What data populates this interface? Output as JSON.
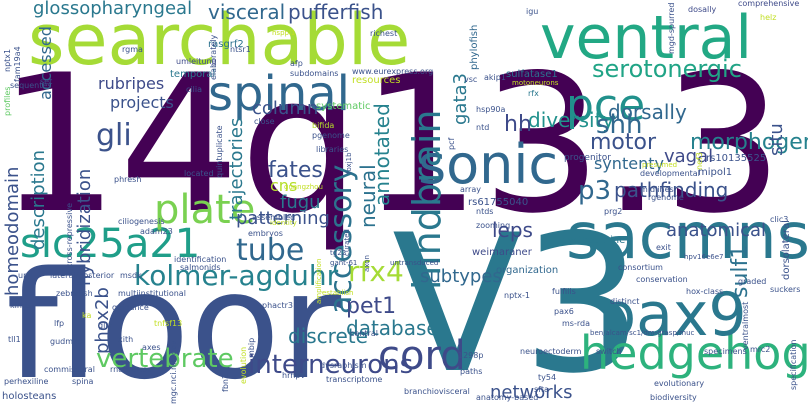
{
  "words": [
    {
      "text": "14q13.3",
      "color": "#440154"
    },
    {
      "text": "V3",
      "color": "#2a788e"
    },
    {
      "text": "floor",
      "color": "#3b528b"
    },
    {
      "text": "searchable",
      "color": "#a5db36"
    },
    {
      "text": "ventral",
      "color": "#22a884"
    },
    {
      "text": "sacmns",
      "color": "#2a788e"
    },
    {
      "text": "hedgehog",
      "color": "#2db27d"
    },
    {
      "text": "pax9",
      "color": "#2a788e"
    },
    {
      "text": "sonic",
      "color": "#31688e"
    },
    {
      "text": "spinal",
      "color": "#31688e"
    },
    {
      "text": "slc25a21",
      "color": "#1f9e89"
    },
    {
      "text": "cord",
      "color": "#3e4a89"
    },
    {
      "text": "hindbrain",
      "color": "#2a788e"
    },
    {
      "text": "pce",
      "color": "#21918c"
    },
    {
      "text": "serotonergic",
      "color": "#20a486"
    },
    {
      "text": "accessory",
      "color": "#2c728e"
    },
    {
      "text": "kolmer-agduhr",
      "color": "#26828e"
    },
    {
      "text": "vertebrate",
      "color": "#5ec962"
    },
    {
      "text": "interneurons",
      "color": "#3e4a89"
    },
    {
      "text": "glossopharyngeal",
      "color": "#2a788e"
    },
    {
      "text": "visceral",
      "color": "#31688e"
    },
    {
      "text": "pufferfish",
      "color": "#3b528b"
    },
    {
      "text": "gata3",
      "color": "#2a788e"
    },
    {
      "text": "diversity",
      "color": "#21918c"
    },
    {
      "text": "shh",
      "color": "#31688e"
    },
    {
      "text": "hh",
      "color": "#3e4a89"
    },
    {
      "text": "dorsally",
      "color": "#31688e"
    },
    {
      "text": "motor",
      "color": "#3b528b"
    },
    {
      "text": "morphogen",
      "color": "#26828e"
    },
    {
      "text": "gli",
      "color": "#3b528b"
    },
    {
      "text": "projects",
      "color": "#3b528b"
    },
    {
      "text": "rubripes",
      "color": "#3e4a89"
    },
    {
      "text": "column",
      "color": "#3b528b"
    },
    {
      "text": "plate",
      "color": "#7ad151"
    },
    {
      "text": "tube",
      "color": "#31688e"
    },
    {
      "text": "homeodomain",
      "color": "#3b528b"
    },
    {
      "text": "description",
      "color": "#2a788e"
    },
    {
      "text": "hybridization",
      "color": "#3b528b"
    },
    {
      "text": "trajectories",
      "color": "#2a788e"
    },
    {
      "text": "fates",
      "color": "#3b528b"
    },
    {
      "text": "fugu",
      "color": "#2a788e"
    },
    {
      "text": "patterning",
      "color": "#3b528b"
    },
    {
      "text": "p3",
      "color": "#31688e"
    },
    {
      "text": "pathfinding",
      "color": "#3b528b"
    },
    {
      "text": "neural",
      "color": "#2c728e"
    },
    {
      "text": "annotated",
      "color": "#26828e"
    },
    {
      "text": "rfx4",
      "color": "#a5db36"
    },
    {
      "text": "pet1",
      "color": "#3e4a89"
    },
    {
      "text": "discrete",
      "color": "#2a788e"
    },
    {
      "text": "database",
      "color": "#2a788e"
    },
    {
      "text": "sulf1",
      "color": "#2c728e"
    },
    {
      "text": "anatomical",
      "color": "#3b528b"
    },
    {
      "text": "leps",
      "color": "#3e4a89"
    },
    {
      "text": "subtypes",
      "color": "#31688e"
    },
    {
      "text": "networks",
      "color": "#3b528b"
    },
    {
      "text": "phox2b",
      "color": "#3b528b"
    },
    {
      "text": "vagal",
      "color": "#3e4a89"
    },
    {
      "text": "syntenty",
      "color": "#31688e"
    },
    {
      "text": "situ",
      "color": "#3b528b"
    },
    {
      "text": "accessed",
      "color": "#31688e"
    },
    {
      "text": "cns",
      "color": "#b5de2b"
    },
    {
      "text": "rs10135525",
      "color": "#3b528b"
    },
    {
      "text": "mipol1",
      "color": "#3b528b"
    },
    {
      "text": "progenitor",
      "color": "#3b528b"
    },
    {
      "text": "cyclopamine",
      "color": "#2a788e"
    },
    {
      "text": "rs61755040",
      "color": "#3b528b"
    },
    {
      "text": "weimaraner",
      "color": "#3e4a89"
    },
    {
      "text": "organization",
      "color": "#31688e"
    },
    {
      "text": "www.eurexpress.org",
      "color": "#3b528b"
    },
    {
      "text": "rasgrf2",
      "color": "#2c728e"
    },
    {
      "text": "sulfatase1",
      "color": "#2c728e"
    },
    {
      "text": "resources",
      "color": "#c2df23"
    },
    {
      "text": "systematic",
      "color": "#5ec962"
    },
    {
      "text": "temporal",
      "color": "#2a788e"
    },
    {
      "text": "elaborately",
      "color": "#3b528b"
    },
    {
      "text": "richest",
      "color": "#3b528b"
    },
    {
      "text": "phylofish",
      "color": "#31688e"
    },
    {
      "text": "dosally",
      "color": "#3e4a89"
    },
    {
      "text": "comprehensive",
      "color": "#3e4a89"
    },
    {
      "text": "helz",
      "color": "#c2df23"
    },
    {
      "text": "mgd-spurred",
      "color": "#3b528b"
    },
    {
      "text": "igu",
      "color": "#3b528b"
    },
    {
      "text": "nptx1",
      "color": "#3b528b"
    },
    {
      "text": "fam19a4",
      "color": "#3b528b"
    },
    {
      "text": "profiles",
      "color": "#5ec962"
    },
    {
      "text": "sequentes",
      "color": "#3b528b"
    },
    {
      "text": "set",
      "color": "#3b528b"
    },
    {
      "text": "rgma",
      "color": "#3b528b"
    },
    {
      "text": "ntsr1",
      "color": "#3b528b"
    },
    {
      "text": "afp",
      "color": "#3b528b"
    },
    {
      "text": "subdomains",
      "color": "#3b528b"
    },
    {
      "text": "umleitung",
      "color": "#3e4a89"
    },
    {
      "text": "vsc",
      "color": "#3b528b"
    },
    {
      "text": "akip1",
      "color": "#3b528b"
    },
    {
      "text": "motoneurons",
      "color": "#c2df23"
    },
    {
      "text": "rfx",
      "color": "#2a788e"
    },
    {
      "text": "cilia",
      "color": "#3b528b"
    },
    {
      "text": "close",
      "color": "#3b528b"
    },
    {
      "text": "bifida",
      "color": "#b5de2b"
    },
    {
      "text": "pgenome",
      "color": "#3b528b"
    },
    {
      "text": "libraries",
      "color": "#3b528b"
    },
    {
      "text": "hsp90a",
      "color": "#3b528b"
    },
    {
      "text": "ntd",
      "color": "#3b528b"
    },
    {
      "text": "pcf",
      "color": "#3b528b"
    },
    {
      "text": "developmental",
      "color": "#3b528b"
    },
    {
      "text": "nef3",
      "color": "#c2df23"
    },
    {
      "text": "presumed",
      "color": "#c2df23"
    },
    {
      "text": "located",
      "color": "#3b528b"
    },
    {
      "text": "quintuplicate",
      "color": "#3b528b"
    },
    {
      "text": "guangzhou",
      "color": "#c2df23"
    },
    {
      "text": "foxj1b",
      "color": "#3b528b"
    },
    {
      "text": "array",
      "color": "#3b528b"
    },
    {
      "text": "midlines",
      "color": "#3b528b"
    },
    {
      "text": "prg2",
      "color": "#3b528b"
    },
    {
      "text": "rgenome",
      "color": "#3b528b"
    },
    {
      "text": "ntds",
      "color": "#3b528b"
    },
    {
      "text": "zooming",
      "color": "#3b528b"
    },
    {
      "text": "phresh",
      "color": "#3b528b"
    },
    {
      "text": "cross-repressive",
      "color": "#3b528b"
    },
    {
      "text": "ciliogenesis",
      "color": "#3b528b"
    },
    {
      "text": "adam23",
      "color": "#3b528b"
    },
    {
      "text": "assembled",
      "color": "#3b528b"
    },
    {
      "text": "embryos",
      "color": "#3b528b"
    },
    {
      "text": "identity",
      "color": "#c2df23"
    },
    {
      "text": "curated",
      "color": "#3b528b"
    },
    {
      "text": "exit",
      "color": "#3b528b"
    },
    {
      "text": "clic3",
      "color": "#3b528b"
    },
    {
      "text": "dorsolateral",
      "color": "#3b528b"
    },
    {
      "text": "hpv16e6e7",
      "color": "#3b528b"
    },
    {
      "text": "lateral/posterior",
      "color": "#3b528b"
    },
    {
      "text": "uml",
      "color": "#3b528b"
    },
    {
      "text": "msdk",
      "color": "#3b528b"
    },
    {
      "text": "identification",
      "color": "#3b528b"
    },
    {
      "text": "salmonids",
      "color": "#3b528b"
    },
    {
      "text": "zebrafish",
      "color": "#3b528b"
    },
    {
      "text": "multiinstitutional",
      "color": "#3b528b"
    },
    {
      "text": "kinds",
      "color": "#3b528b"
    },
    {
      "text": "guidance",
      "color": "#3b528b"
    },
    {
      "text": "ka",
      "color": "#c2df23"
    },
    {
      "text": "lfp",
      "color": "#3b528b"
    },
    {
      "text": "glia",
      "color": "#3b528b"
    },
    {
      "text": "amplification",
      "color": "#c2df23"
    },
    {
      "text": "tg22",
      "color": "#3b528b"
    },
    {
      "text": "gant-61",
      "color": "#3b528b"
    },
    {
      "text": "axon",
      "color": "#3b528b"
    },
    {
      "text": "untransduced",
      "color": "#3b528b"
    },
    {
      "text": "establish",
      "color": "#c2df23"
    },
    {
      "text": "nptx-1",
      "color": "#3b528b"
    },
    {
      "text": "fulfills",
      "color": "#3b528b"
    },
    {
      "text": "consortium",
      "color": "#3b528b"
    },
    {
      "text": "conservation",
      "color": "#3b528b"
    },
    {
      "text": "hox-class",
      "color": "#3b528b"
    },
    {
      "text": "graded",
      "color": "#3b528b"
    },
    {
      "text": "suckers",
      "color": "#3b528b"
    },
    {
      "text": "distinct",
      "color": "#3b528b"
    },
    {
      "text": "ventralmost",
      "color": "#3b528b"
    },
    {
      "text": "tll1",
      "color": "#3b528b"
    },
    {
      "text": "gudmap",
      "color": "#3b528b"
    },
    {
      "text": "xith",
      "color": "#3b528b"
    },
    {
      "text": "axes",
      "color": "#3b528b"
    },
    {
      "text": "tnfsf13",
      "color": "#c2df23"
    },
    {
      "text": "phactr3",
      "color": "#3b528b"
    },
    {
      "text": "central",
      "color": "#3b528b"
    },
    {
      "text": "pax6",
      "color": "#3b528b"
    },
    {
      "text": "ms-rda",
      "color": "#3b528b"
    },
    {
      "text": "ben/alcam/sc1/dm-grasp/muc",
      "color": "#3b528b"
    },
    {
      "text": "commissural",
      "color": "#3b528b"
    },
    {
      "text": "rnabrowse",
      "color": "#3b528b"
    },
    {
      "text": "mgc.nci.nih.gov",
      "color": "#3b528b"
    },
    {
      "text": "evolution",
      "color": "#c2df23"
    },
    {
      "text": "mbip",
      "color": "#3b528b"
    },
    {
      "text": "dysraphism",
      "color": "#3b528b"
    },
    {
      "text": "1298p",
      "color": "#3b528b"
    },
    {
      "text": "neuroectoderm",
      "color": "#3b528b"
    },
    {
      "text": "switch",
      "color": "#3b528b"
    },
    {
      "text": "specimens",
      "color": "#3b528b"
    },
    {
      "text": "mrc2",
      "color": "#3b528b"
    },
    {
      "text": "specification",
      "color": "#3b528b"
    },
    {
      "text": "perhexiline",
      "color": "#3b528b"
    },
    {
      "text": "spina",
      "color": "#3b528b"
    },
    {
      "text": "fbn2",
      "color": "#3b528b"
    },
    {
      "text": "hrhpv",
      "color": "#3b528b"
    },
    {
      "text": "transcriptome",
      "color": "#3b528b"
    },
    {
      "text": "paths",
      "color": "#3b528b"
    },
    {
      "text": "ty54",
      "color": "#3b528b"
    },
    {
      "text": "evolutionary",
      "color": "#3b528b"
    },
    {
      "text": "holosteans",
      "color": "#3b528b"
    },
    {
      "text": "branchiovisceral",
      "color": "#3b528b"
    },
    {
      "text": "sfta",
      "color": "#3b528b"
    },
    {
      "text": "anatomy-based",
      "color": "#3b528b"
    },
    {
      "text": "biodiversity",
      "color": "#3b528b"
    },
    {
      "text": "hsppl1",
      "color": "#c2df23"
    }
  ]
}
